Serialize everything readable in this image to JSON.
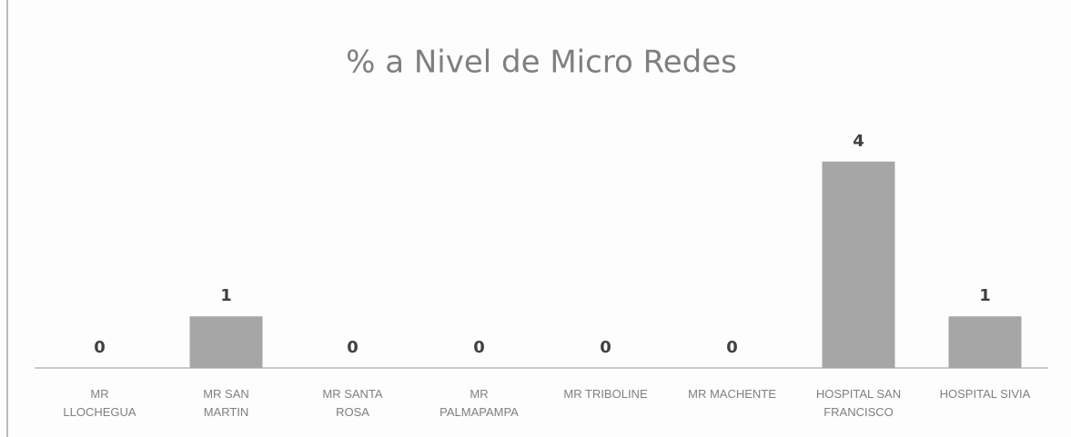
{
  "chart_data": {
    "type": "bar",
    "title": "% a Nivel de Micro Redes",
    "categories": [
      "MR LLOCHEGUA",
      "MR SAN MARTIN",
      "MR SANTA ROSA",
      "MR PALMAPAMPA",
      "MR TRIBOLINE",
      "MR MACHENTE",
      "HOSPITAL SAN FRANCISCO",
      "HOSPITAL SIVIA"
    ],
    "values": [
      0,
      1,
      0,
      0,
      0,
      0,
      4,
      1
    ],
    "color": "#a6a6a6",
    "ylim": [
      0,
      5
    ]
  }
}
